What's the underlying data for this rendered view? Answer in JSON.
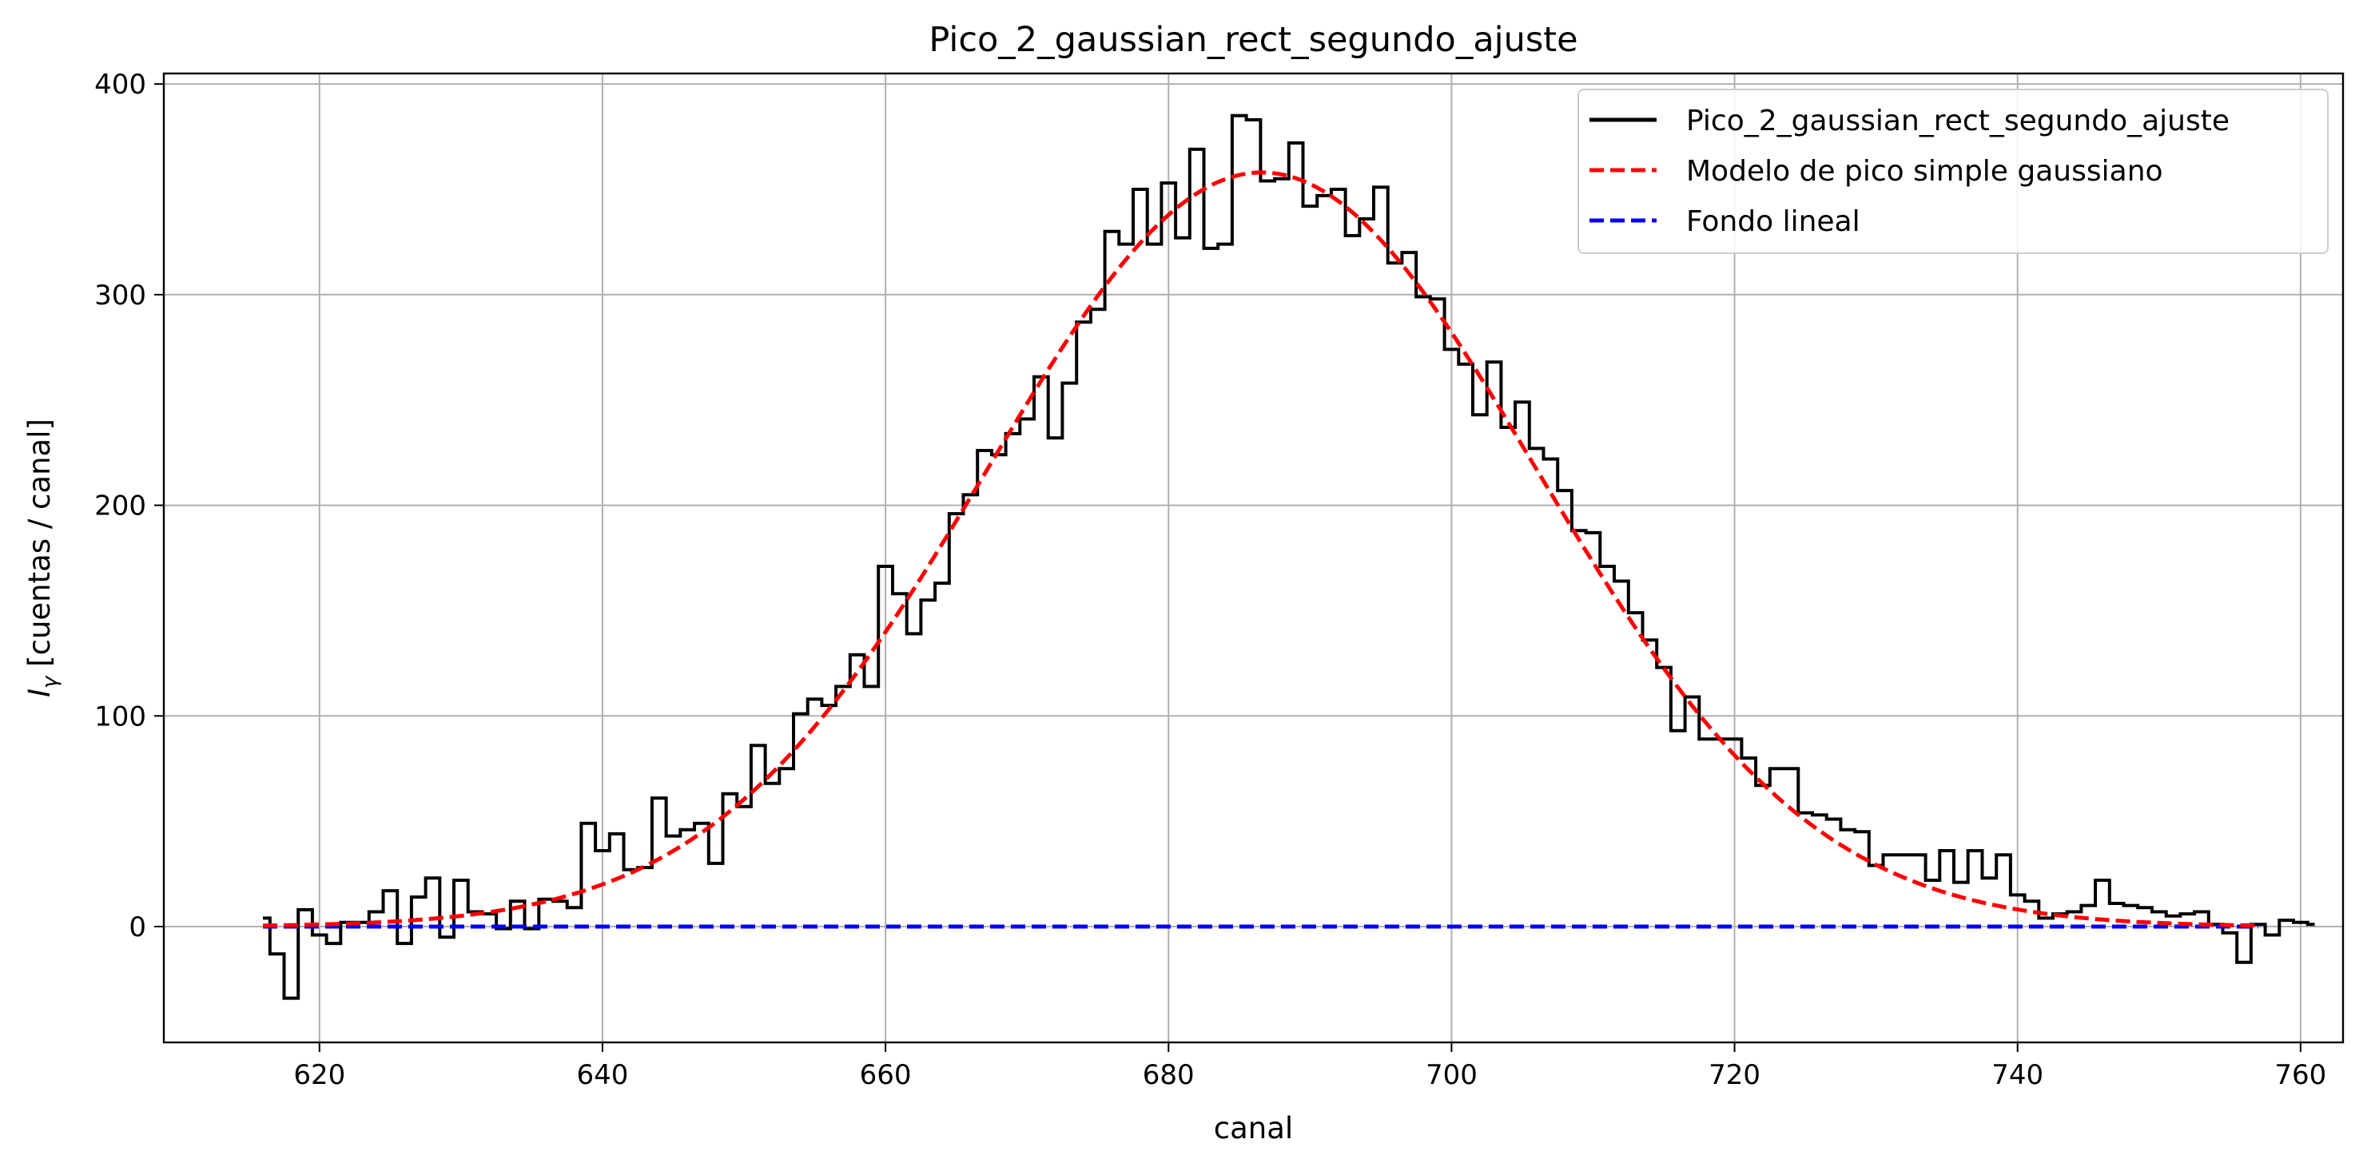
{
  "chart_data": {
    "type": "line",
    "title": "Pico_2_gaussian_rect_segundo_ajuste",
    "xlabel": "canal",
    "ylabel_symbol": "I",
    "ylabel_subscript": "γ",
    "ylabel_rest": " [cuentas / canal]",
    "xlim": [
      609,
      763
    ],
    "ylim": [
      -55,
      405
    ],
    "xticks": [
      620,
      640,
      660,
      680,
      700,
      720,
      740,
      760
    ],
    "yticks": [
      0,
      100,
      200,
      300,
      400
    ],
    "grid": true,
    "legend_position": "top-right",
    "colors": {
      "data": "#000000",
      "gauss": "#ff0000",
      "background": "#0000ff",
      "grid": "#b0b0b0"
    },
    "series": [
      {
        "name": "Pico_2_gaussian_rect_segundo_ajuste",
        "style": "steps-solid",
        "x_start": 616,
        "x_step": 1,
        "values": [
          4,
          -13,
          -34,
          8,
          -4,
          -8,
          2,
          2,
          7,
          17,
          -8,
          14,
          23,
          -5,
          22,
          7,
          6,
          -1,
          12,
          -1,
          13,
          12,
          9,
          49,
          36,
          44,
          27,
          28,
          61,
          43,
          46,
          49,
          30,
          63,
          57,
          86,
          68,
          75,
          101,
          108,
          105,
          114,
          129,
          114,
          171,
          158,
          139,
          155,
          163,
          196,
          205,
          226,
          224,
          234,
          241,
          261,
          232,
          258,
          287,
          293,
          330,
          324,
          350,
          324,
          353,
          327,
          369,
          322,
          324,
          385,
          383,
          354,
          355,
          372,
          342,
          347,
          350,
          328,
          336,
          351,
          315,
          320,
          299,
          298,
          274,
          267,
          243,
          268,
          237,
          249,
          227,
          222,
          207,
          188,
          187,
          171,
          164,
          149,
          136,
          123,
          93,
          109,
          89,
          89,
          89,
          80,
          67,
          75,
          75,
          54,
          53,
          51,
          46,
          45,
          29,
          34,
          34,
          34,
          22,
          36,
          21,
          36,
          23,
          34,
          15,
          12,
          4,
          6,
          7,
          10,
          22,
          11,
          10,
          9,
          7,
          5,
          6,
          7,
          1,
          -3,
          -17,
          1,
          -4,
          3,
          2,
          1
        ]
      },
      {
        "name": "Modelo de pico simple gaussiano",
        "style": "dashed",
        "model": "gaussian",
        "amplitude": 358,
        "center": 686.6,
        "sigma": 19.4,
        "x_range": [
          616,
          757
        ]
      },
      {
        "name": "Fondo lineal",
        "style": "dashed",
        "model": "linear",
        "x": [
          616,
          757
        ],
        "y": [
          0,
          0
        ]
      }
    ]
  }
}
